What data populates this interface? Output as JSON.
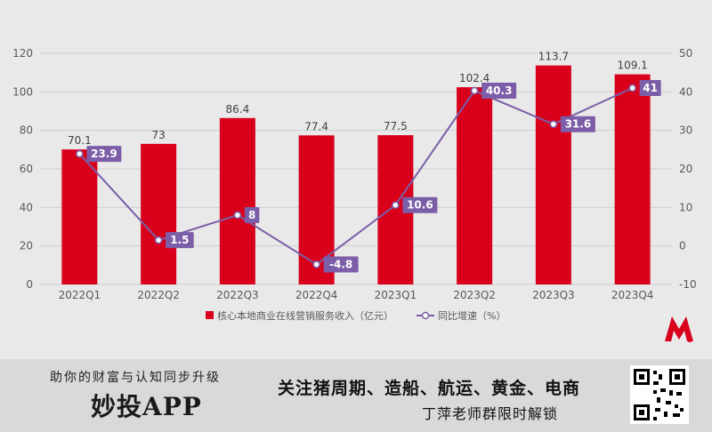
{
  "chart_data": {
    "type": "bar+line",
    "categories": [
      "2022Q1",
      "2022Q2",
      "2022Q3",
      "2022Q4",
      "2023Q1",
      "2023Q2",
      "2023Q3",
      "2023Q4"
    ],
    "series": [
      {
        "name": "核心本地商业在线营销服务收入（亿元）",
        "type": "bar",
        "axis": "left",
        "values": [
          70.1,
          73,
          86.4,
          77.4,
          77.5,
          102.4,
          113.7,
          109.1
        ],
        "labels": [
          "70.1",
          "73",
          "86.4",
          "77.4",
          "77.5",
          "102.4",
          "113.7",
          "109.1"
        ]
      },
      {
        "name": "同比增速（%）",
        "type": "line",
        "axis": "right",
        "values": [
          23.9,
          1.5,
          8,
          -4.8,
          10.6,
          40.3,
          31.6,
          41
        ],
        "labels": [
          "23.9",
          "1.5",
          "8",
          "-4.8",
          "10.6",
          "40.3",
          "31.6",
          "41"
        ]
      }
    ],
    "y_left": {
      "range": [
        0,
        120
      ],
      "ticks": [
        "0",
        "20",
        "40",
        "60",
        "80",
        "100",
        "120"
      ]
    },
    "y_right": {
      "range": [
        -10,
        50
      ],
      "ticks": [
        "-10",
        "0",
        "10",
        "20",
        "30",
        "40",
        "50"
      ]
    },
    "grid": true,
    "legend": "bottom",
    "colors": {
      "bar": "#d9001b",
      "line": "#7b5ea7",
      "background": "#e9e9ea"
    }
  },
  "promo": {
    "line1": "助你的财富与认知同步升级",
    "brand": "妙投APP",
    "topics": "关注猪周期、造船、航运、黄金、电商",
    "teacher": "丁萍老师群限时解锁"
  },
  "icons": {
    "logo": "m-logo-icon",
    "qr": "qr-code-icon"
  }
}
